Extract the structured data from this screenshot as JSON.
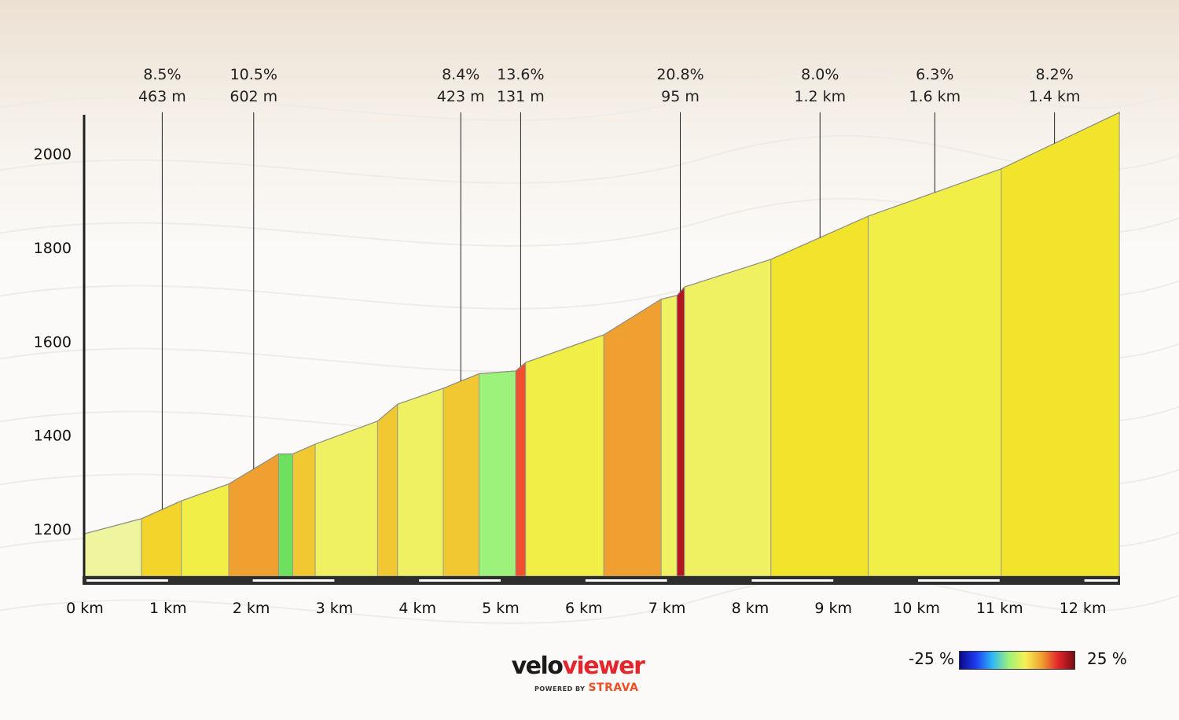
{
  "chart_data": {
    "type": "area",
    "title": "",
    "xlabel": "",
    "ylabel": "",
    "xlim": [
      0,
      12.4
    ],
    "ylim": [
      1100,
      2090
    ],
    "x_ticks": [
      0,
      1,
      2,
      3,
      4,
      5,
      6,
      7,
      8,
      9,
      10,
      11,
      12
    ],
    "x_tick_labels": [
      "0 km",
      "1 km",
      "2 km",
      "3 km",
      "4 km",
      "5 km",
      "6 km",
      "7 km",
      "8 km",
      "9 km",
      "10 km",
      "11 km",
      "12 km"
    ],
    "y_ticks": [
      1200,
      1400,
      1600,
      1800,
      2000
    ],
    "y_tick_labels": [
      "1200",
      "1400",
      "1600",
      "1800",
      "2000"
    ],
    "grid": false,
    "segments": [
      {
        "x0": 0.0,
        "x1": 0.68,
        "elev_start": 1190,
        "elev_end": 1222,
        "color": "#eef59e"
      },
      {
        "x0": 0.68,
        "x1": 1.16,
        "elev_start": 1222,
        "elev_end": 1260,
        "color": "#f2d42a"
      },
      {
        "x0": 1.16,
        "x1": 1.73,
        "elev_start": 1260,
        "elev_end": 1296,
        "color": "#f1ee48"
      },
      {
        "x0": 1.73,
        "x1": 2.33,
        "elev_start": 1296,
        "elev_end": 1360,
        "color": "#f0a030"
      },
      {
        "x0": 2.33,
        "x1": 2.5,
        "elev_start": 1360,
        "elev_end": 1360,
        "color": "#6de060"
      },
      {
        "x0": 2.5,
        "x1": 2.77,
        "elev_start": 1360,
        "elev_end": 1381,
        "color": "#f2c832"
      },
      {
        "x0": 2.77,
        "x1": 3.52,
        "elev_start": 1381,
        "elev_end": 1430,
        "color": "#eff062"
      },
      {
        "x0": 3.52,
        "x1": 3.76,
        "elev_start": 1430,
        "elev_end": 1466,
        "color": "#f2c832"
      },
      {
        "x0": 3.76,
        "x1": 4.31,
        "elev_start": 1466,
        "elev_end": 1500,
        "color": "#eff062"
      },
      {
        "x0": 4.31,
        "x1": 4.74,
        "elev_start": 1500,
        "elev_end": 1531,
        "color": "#f2c832"
      },
      {
        "x0": 4.74,
        "x1": 5.18,
        "elev_start": 1531,
        "elev_end": 1537,
        "color": "#9cf27a"
      },
      {
        "x0": 5.18,
        "x1": 5.3,
        "elev_start": 1537,
        "elev_end": 1555,
        "color": "#f05030"
      },
      {
        "x0": 5.3,
        "x1": 6.24,
        "elev_start": 1555,
        "elev_end": 1614,
        "color": "#f1ee48"
      },
      {
        "x0": 6.24,
        "x1": 6.93,
        "elev_start": 1614,
        "elev_end": 1690,
        "color": "#f0a030"
      },
      {
        "x0": 6.93,
        "x1": 7.12,
        "elev_start": 1690,
        "elev_end": 1698,
        "color": "#eff062"
      },
      {
        "x0": 7.12,
        "x1": 7.21,
        "elev_start": 1698,
        "elev_end": 1716,
        "color": "#b2161e"
      },
      {
        "x0": 7.21,
        "x1": 8.25,
        "elev_start": 1716,
        "elev_end": 1775,
        "color": "#eff062"
      },
      {
        "x0": 8.25,
        "x1": 9.42,
        "elev_start": 1775,
        "elev_end": 1867,
        "color": "#f2e42a"
      },
      {
        "x0": 9.42,
        "x1": 11.02,
        "elev_start": 1867,
        "elev_end": 1968,
        "color": "#f1ee48"
      },
      {
        "x0": 11.02,
        "x1": 12.44,
        "elev_start": 1968,
        "elev_end": 2088,
        "color": "#f2e42a"
      }
    ],
    "annotations": [
      {
        "grade": "8.5%",
        "length": "463 m",
        "x": 0.93
      },
      {
        "grade": "10.5%",
        "length": "602 m",
        "x": 2.03
      },
      {
        "grade": "8.4%",
        "length": "423 m",
        "x": 4.52
      },
      {
        "grade": "13.6%",
        "length": "131 m",
        "x": 5.24
      },
      {
        "grade": "20.8%",
        "length": "95 m",
        "x": 7.16
      },
      {
        "grade": "8.0%",
        "length": "1.2 km",
        "x": 8.84
      },
      {
        "grade": "6.3%",
        "length": "1.6 km",
        "x": 10.22
      },
      {
        "grade": "8.2%",
        "length": "1.4 km",
        "x": 11.66
      }
    ]
  },
  "branding": {
    "logo_part1": "velo",
    "logo_part2": "viewer",
    "powered_by": "POWERED BY",
    "strava": "STRAVA"
  },
  "legend": {
    "min_label": "-25 %",
    "max_label": "25 %",
    "colors": [
      "#0a0a8a",
      "#1e3cf0",
      "#2fb8f5",
      "#9cf27a",
      "#f5f055",
      "#f0a030",
      "#e3262b",
      "#7a0c12"
    ]
  }
}
